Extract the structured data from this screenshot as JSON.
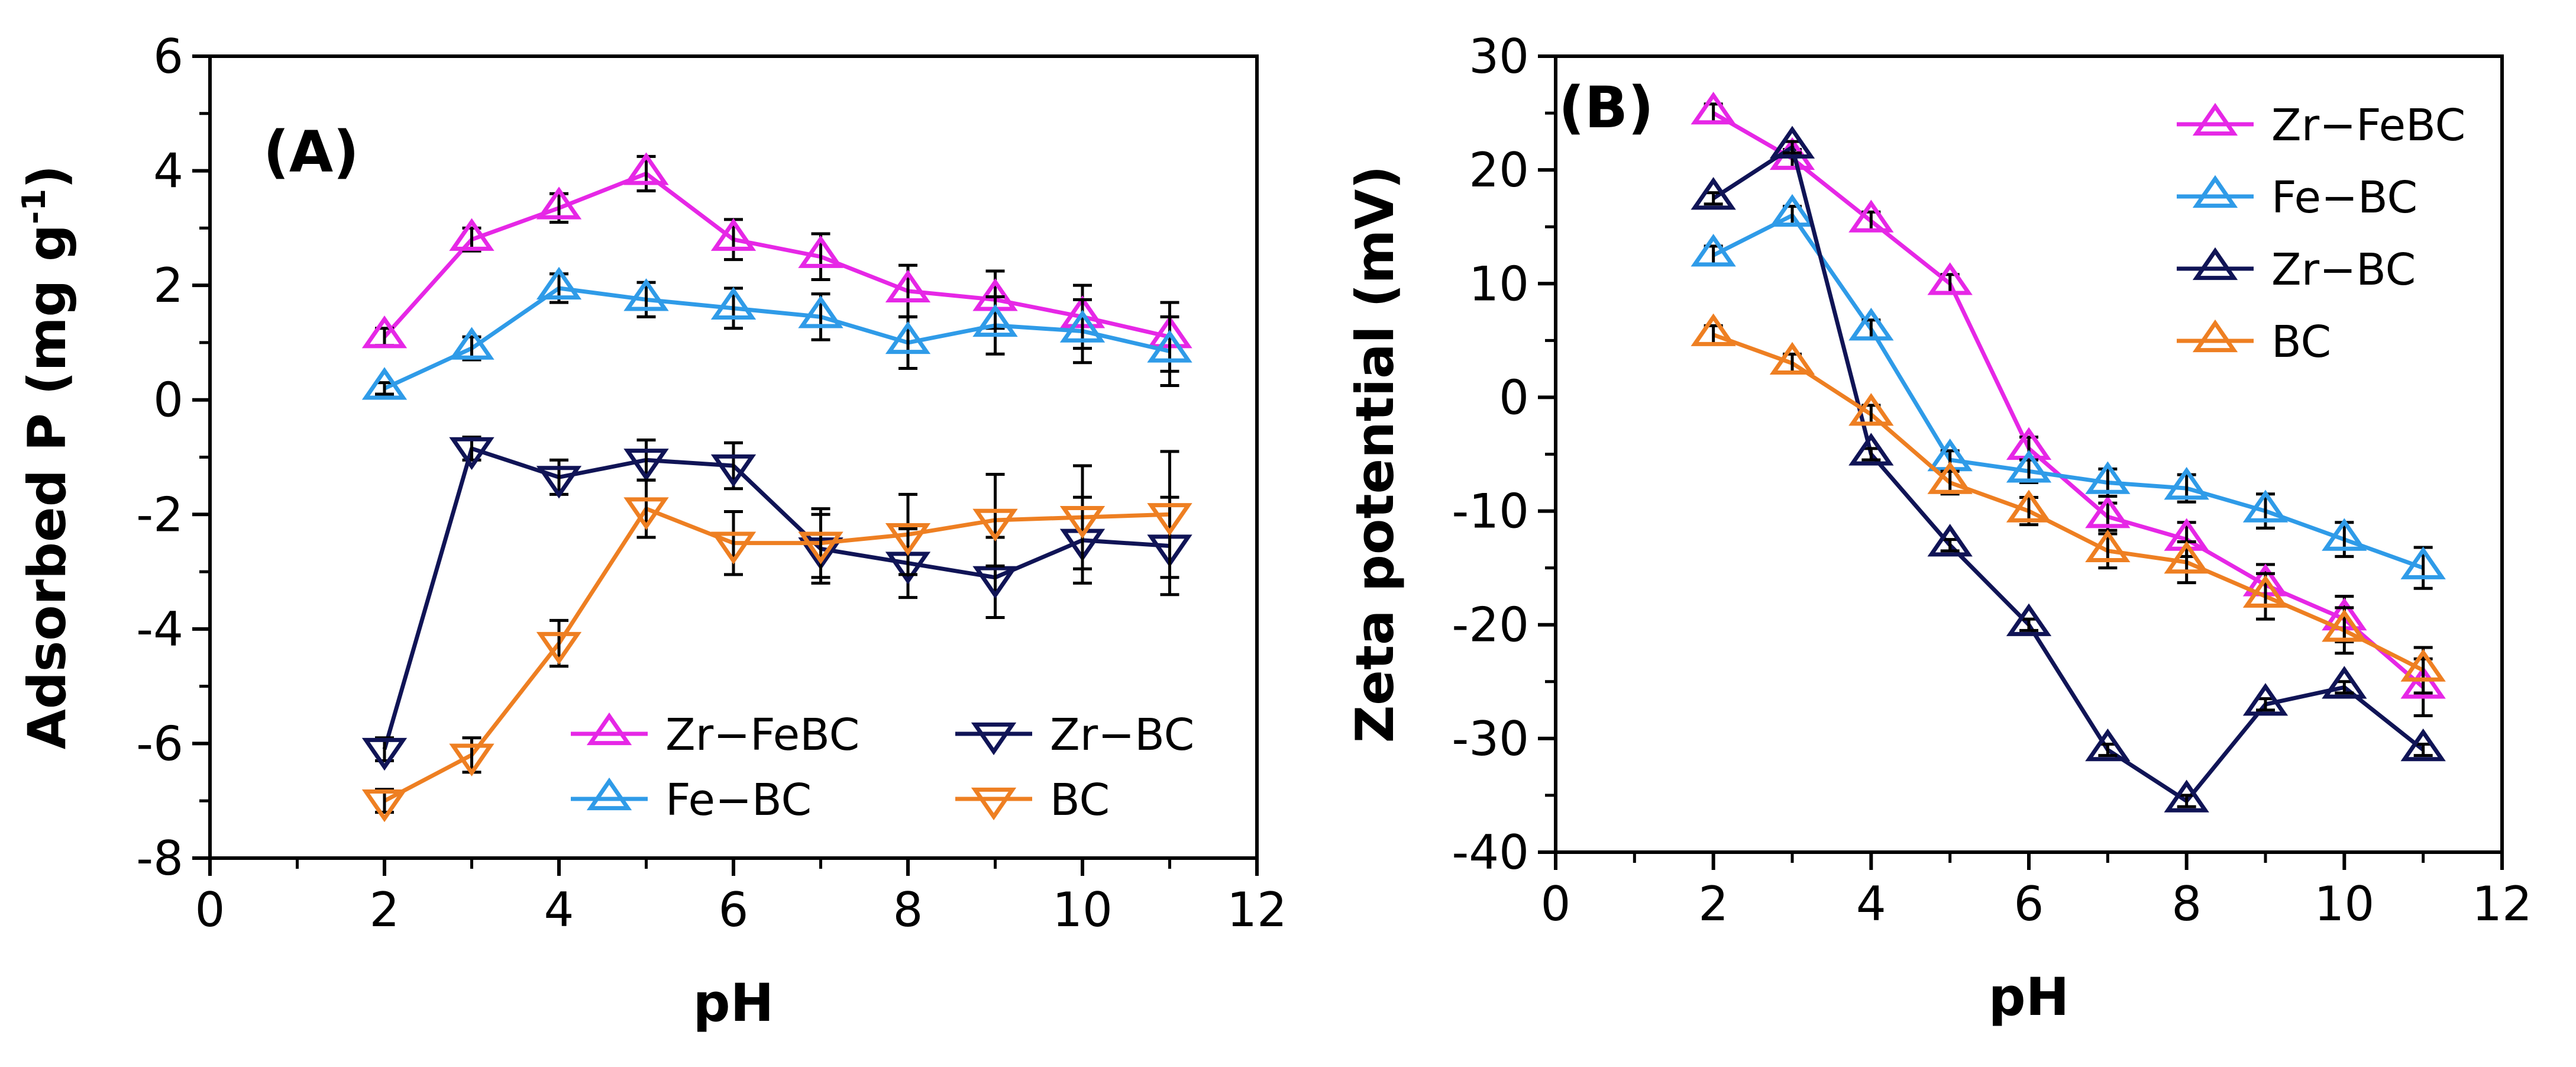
{
  "chart_data": [
    {
      "type": "line",
      "panel_label": "(A)",
      "xlabel": "pH",
      "ylabel": "Adsorbed P (mg g",
      "ylabel_sup": "-1",
      "ylabel_close": ")",
      "xlim": [
        0,
        12
      ],
      "ylim": [
        -8,
        6
      ],
      "xticks": [
        "0",
        "2",
        "4",
        "6",
        "8",
        "10",
        "12"
      ],
      "yticks": [
        "-8",
        "-6",
        "-4",
        "-2",
        "0",
        "2",
        "4",
        "6"
      ],
      "legend_position": "bottom-right",
      "x": [
        2,
        3,
        4,
        5,
        6,
        7,
        8,
        9,
        10,
        11
      ],
      "series": [
        {
          "name": "Zr−FeBC",
          "marker": "triangle-up",
          "color": "#e627e6",
          "values": [
            1.1,
            2.8,
            3.35,
            3.95,
            2.8,
            2.5,
            1.9,
            1.75,
            1.45,
            1.1
          ],
          "errors": [
            0.15,
            0.2,
            0.25,
            0.3,
            0.35,
            0.4,
            0.45,
            0.5,
            0.55,
            0.6
          ]
        },
        {
          "name": "Fe−BC",
          "marker": "triangle-up",
          "color": "#2f9be8",
          "values": [
            0.2,
            0.9,
            1.95,
            1.75,
            1.6,
            1.45,
            1.0,
            1.3,
            1.2,
            0.85
          ],
          "errors": [
            0.1,
            0.2,
            0.25,
            0.3,
            0.35,
            0.4,
            0.45,
            0.5,
            0.55,
            0.6
          ]
        },
        {
          "name": "Zr−BC",
          "marker": "triangle-down",
          "color": "#101456",
          "values": [
            -6.1,
            -0.85,
            -1.35,
            -1.05,
            -1.15,
            -2.6,
            -2.85,
            -3.1,
            -2.45,
            -2.55
          ],
          "errors": [
            0.2,
            0.2,
            0.3,
            0.35,
            0.4,
            0.6,
            0.6,
            0.7,
            0.75,
            0.85
          ]
        },
        {
          "name": "BC",
          "marker": "triangle-down",
          "color": "#ee7f22",
          "values": [
            -7.0,
            -6.2,
            -4.25,
            -1.9,
            -2.5,
            -2.5,
            -2.35,
            -2.1,
            -2.05,
            -2.0
          ],
          "errors": [
            0.2,
            0.3,
            0.4,
            0.5,
            0.55,
            0.6,
            0.7,
            0.8,
            0.9,
            1.1
          ]
        }
      ]
    },
    {
      "type": "line",
      "panel_label": "(B)",
      "xlabel": "pH",
      "ylabel": "Zeta potential (mV)",
      "xlim": [
        0,
        12
      ],
      "ylim": [
        -40,
        30
      ],
      "xticks": [
        "0",
        "2",
        "4",
        "6",
        "8",
        "10",
        "12"
      ],
      "yticks": [
        "-40",
        "-30",
        "-20",
        "-10",
        "0",
        "10",
        "20",
        "30"
      ],
      "legend_position": "top-right",
      "x": [
        2,
        3,
        4,
        5,
        6,
        7,
        8,
        9,
        10,
        11
      ],
      "series": [
        {
          "name": "Zr−FeBC",
          "marker": "triangle-up",
          "color": "#e627e6",
          "values": [
            25.0,
            21.0,
            15.5,
            10.0,
            -4.5,
            -10.5,
            -12.5,
            -16.5,
            -19.5,
            -25.5
          ],
          "errors": [
            0.8,
            0.8,
            0.8,
            0.8,
            1.0,
            1.2,
            1.5,
            1.8,
            2.0,
            2.5
          ]
        },
        {
          "name": "Fe−BC",
          "marker": "triangle-up",
          "color": "#2f9be8",
          "values": [
            12.5,
            16.0,
            6.0,
            -5.5,
            -6.5,
            -7.5,
            -8.0,
            -10.0,
            -12.5,
            -15.0
          ],
          "errors": [
            0.8,
            0.8,
            0.8,
            0.8,
            1.0,
            1.2,
            1.2,
            1.5,
            1.5,
            1.8
          ]
        },
        {
          "name": "Zr−BC",
          "marker": "triangle-up",
          "color": "#101456",
          "values": [
            17.5,
            22.0,
            -5.0,
            -13.0,
            -20.0,
            -31.0,
            -35.5,
            -27.0,
            -25.5,
            -31.0
          ],
          "errors": [
            0.5,
            0.5,
            0.5,
            0.5,
            0.5,
            0.5,
            0.5,
            0.5,
            0.5,
            0.5
          ]
        },
        {
          "name": "BC",
          "marker": "triangle-up",
          "color": "#ee7f22",
          "values": [
            5.5,
            3.0,
            -1.5,
            -7.5,
            -10.0,
            -13.5,
            -14.5,
            -17.5,
            -20.5,
            -24.0
          ],
          "errors": [
            0.8,
            0.8,
            0.8,
            1.0,
            1.2,
            1.5,
            1.8,
            2.0,
            2.0,
            2.0
          ]
        }
      ]
    }
  ]
}
